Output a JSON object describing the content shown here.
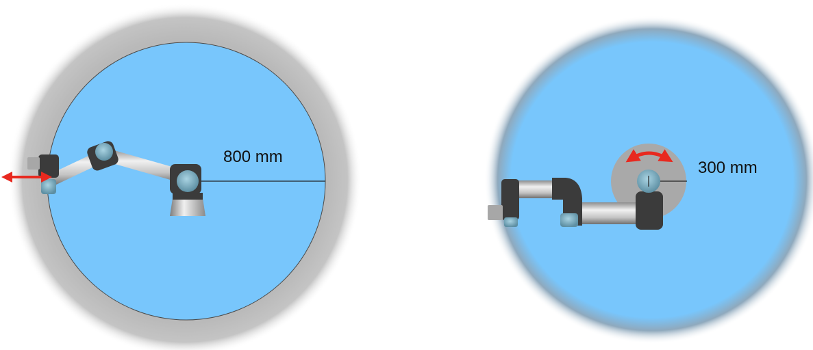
{
  "panels": [
    {
      "id": "left",
      "distance_label": "800 mm",
      "motion": "linear",
      "outer_ring_color": "#b9b9b9",
      "reach_area_color": "#78c6fc"
    },
    {
      "id": "right",
      "distance_label": "300 mm",
      "motion": "rotational",
      "inner_zone_color": "#a9a9a9",
      "reach_area_color": "#78c6fc",
      "edge": "blurred"
    }
  ],
  "colors": {
    "arrow": "#e8291f",
    "link_metal": "#c8c8c8",
    "joint_dark": "#3b3b3b",
    "joint_cap": "#7ab0c4",
    "measure_line": "#222222"
  }
}
